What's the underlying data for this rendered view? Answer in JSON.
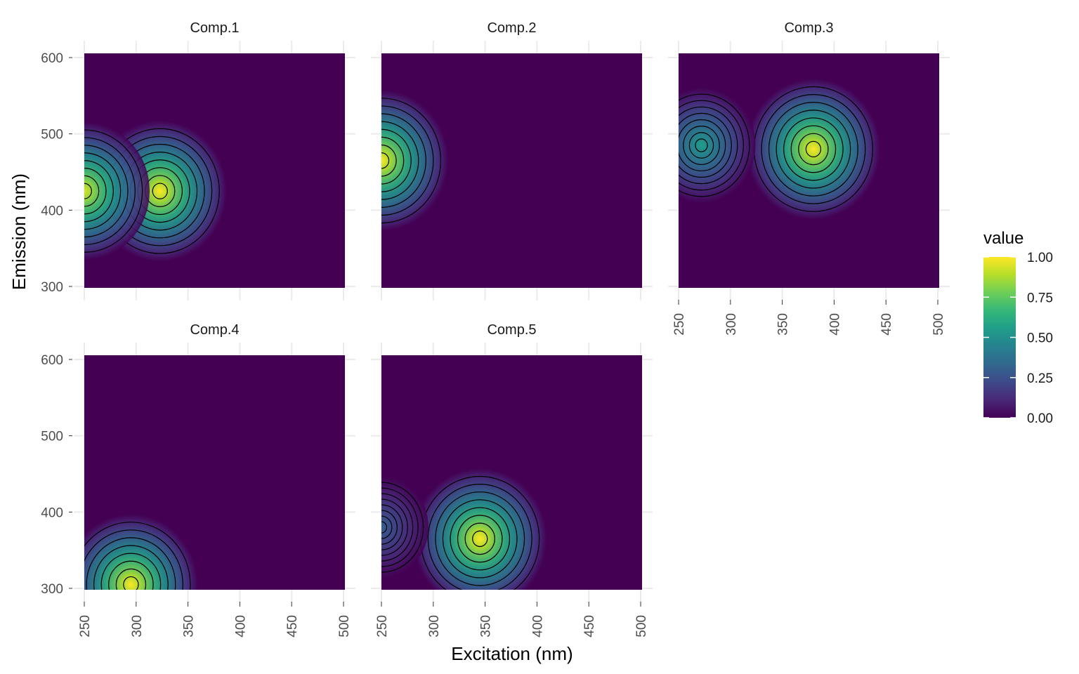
{
  "chart_data": {
    "type": "heatmap",
    "title": "",
    "xlabel": "Excitation (nm)",
    "ylabel": "Emission (nm)",
    "xlim": [
      250,
      500
    ],
    "ylim": [
      300,
      600
    ],
    "x_ticks": [
      250,
      300,
      350,
      400,
      450,
      500
    ],
    "y_ticks": [
      300,
      400,
      500,
      600
    ],
    "grid": true,
    "colormap": "viridis",
    "legend": {
      "title": "value",
      "position": "right",
      "ticks": [
        "1.00",
        "0.75",
        "0.50",
        "0.25",
        "0.00"
      ],
      "range": [
        0,
        1
      ]
    },
    "panels": [
      {
        "name": "Comp.1",
        "peaks": [
          {
            "ex": 323,
            "em": 425,
            "intensity": 1.0
          },
          {
            "ex": 250,
            "em": 425,
            "intensity": 0.95
          }
        ]
      },
      {
        "name": "Comp.2",
        "peaks": [
          {
            "ex": 250,
            "em": 465,
            "intensity": 1.0
          }
        ]
      },
      {
        "name": "Comp.3",
        "peaks": [
          {
            "ex": 380,
            "em": 480,
            "intensity": 1.0
          },
          {
            "ex": 272,
            "em": 485,
            "intensity": 0.55
          }
        ]
      },
      {
        "name": "Comp.4",
        "peaks": [
          {
            "ex": 295,
            "em": 305,
            "intensity": 1.0
          }
        ]
      },
      {
        "name": "Comp.5",
        "peaks": [
          {
            "ex": 345,
            "em": 365,
            "intensity": 1.0
          },
          {
            "ex": 250,
            "em": 380,
            "intensity": 0.3
          }
        ]
      }
    ]
  },
  "colors": {
    "grid": "#ebebeb",
    "contour": "#000000",
    "viridis_low": "#440154",
    "viridis_high": "#fde725"
  }
}
